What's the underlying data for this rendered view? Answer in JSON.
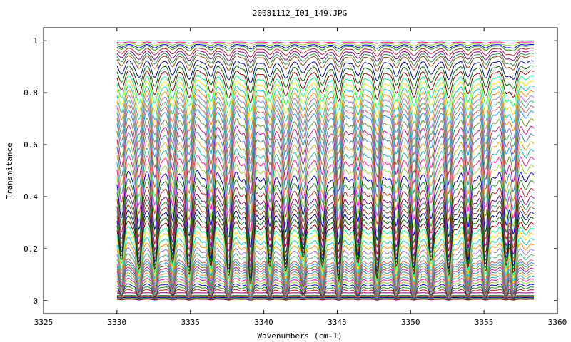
{
  "chart_data": {
    "type": "line",
    "title": "20081112_I01_149.JPG",
    "xlabel": "Wavenumbers (cm-1)",
    "ylabel": "Transmitance",
    "xlim": [
      3325,
      3360
    ],
    "ylim": [
      -0.05,
      1.05
    ],
    "x_data_range": [
      3330,
      3358.4
    ],
    "x_ticks": [
      3325,
      3330,
      3335,
      3340,
      3345,
      3350,
      3355,
      3360
    ],
    "y_ticks": [
      0,
      0.2,
      0.4,
      0.6,
      0.8,
      1
    ],
    "x_tick_labels": [
      "3325",
      "3330",
      "3335",
      "3340",
      "3345",
      "3350",
      "3355",
      "3360"
    ],
    "y_tick_labels": [
      "0",
      "0.2",
      "0.4",
      "0.6",
      "0.8",
      "1"
    ],
    "grid": false,
    "legend": "none",
    "absorption_lines": [
      {
        "x": 3330.3,
        "depth": 0.55
      },
      {
        "x": 3331.5,
        "depth": 0.75
      },
      {
        "x": 3332.6,
        "depth": 0.7
      },
      {
        "x": 3333.8,
        "depth": 0.55
      },
      {
        "x": 3334.9,
        "depth": 0.8
      },
      {
        "x": 3336.4,
        "depth": 0.65
      },
      {
        "x": 3337.6,
        "depth": 0.85
      },
      {
        "x": 3339.1,
        "depth": 1.0
      },
      {
        "x": 3340.4,
        "depth": 0.7
      },
      {
        "x": 3341.5,
        "depth": 0.85
      },
      {
        "x": 3342.7,
        "depth": 0.6
      },
      {
        "x": 3344.0,
        "depth": 0.75
      },
      {
        "x": 3345.1,
        "depth": 0.95
      },
      {
        "x": 3346.4,
        "depth": 0.65
      },
      {
        "x": 3347.7,
        "depth": 0.9
      },
      {
        "x": 3349.0,
        "depth": 0.7
      },
      {
        "x": 3350.2,
        "depth": 0.88
      },
      {
        "x": 3351.4,
        "depth": 0.65
      },
      {
        "x": 3352.6,
        "depth": 0.85
      },
      {
        "x": 3353.9,
        "depth": 0.7
      },
      {
        "x": 3355.1,
        "depth": 0.75
      },
      {
        "x": 3356.5,
        "depth": 0.6
      },
      {
        "x": 3357.0,
        "depth": 0.8
      }
    ],
    "series_baselines": [
      0.005,
      0.008,
      0.012,
      0.015,
      0.02,
      0.03,
      0.04,
      0.05,
      0.06,
      0.07,
      0.08,
      0.09,
      0.1,
      0.11,
      0.12,
      0.13,
      0.14,
      0.15,
      0.17,
      0.19,
      0.21,
      0.23,
      0.25,
      0.27,
      0.29,
      0.31,
      0.33,
      0.35,
      0.37,
      0.39,
      0.42,
      0.45,
      0.48,
      0.51,
      0.54,
      0.57,
      0.6,
      0.63,
      0.66,
      0.69,
      0.72,
      0.74,
      0.76,
      0.78,
      0.8,
      0.82,
      0.84,
      0.86,
      0.88,
      0.9,
      0.92,
      0.94,
      0.95,
      0.96,
      0.97,
      0.98,
      0.985,
      0.99,
      0.995,
      1.0
    ],
    "series_colors": [
      "#8b0000",
      "#006400",
      "#00008b",
      "#8b4513",
      "#2e8b57",
      "#800080",
      "#b22222",
      "#228b22",
      "#0000cd",
      "#9acd32",
      "#ff1493",
      "#20b2aa",
      "#daa520",
      "#4682b4",
      "#c71585",
      "#6b8e23",
      "#1e90ff",
      "#cd5c5c",
      "#3cb371",
      "#9370db",
      "#ff8c00",
      "#00ced1",
      "#ffd700",
      "#00ff7f"
    ]
  }
}
